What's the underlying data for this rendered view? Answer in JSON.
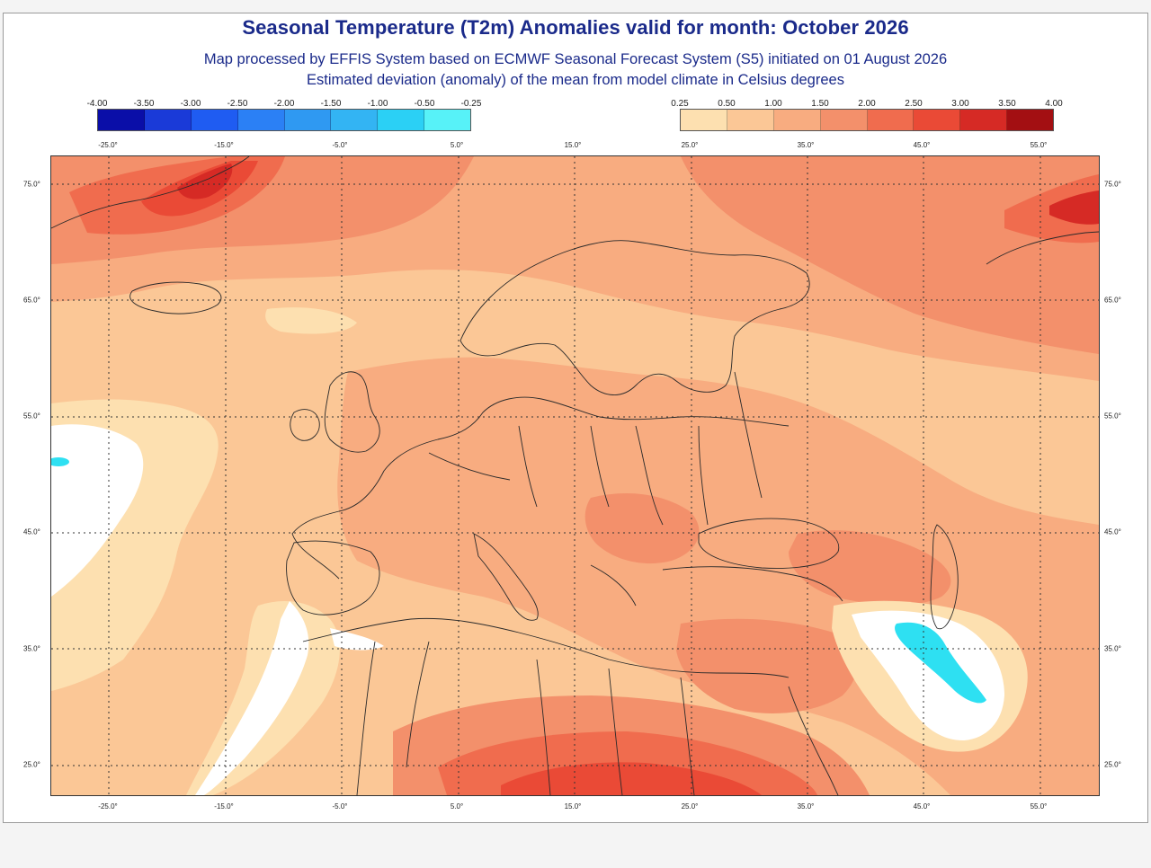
{
  "title": "Seasonal Temperature (T2m) Anomalies valid for month: October 2026",
  "subtitle_1": "Map processed by EFFIS System based on ECMWF Seasonal Forecast System (S5) initiated on 01 August 2026",
  "subtitle_2": "Estimated deviation (anomaly) of the mean from model climate in Celsius degrees",
  "legend_negative": {
    "labels": [
      "-4.00",
      "-3.50",
      "-3.00",
      "-2.50",
      "-2.00",
      "-1.50",
      "-1.00",
      "-0.50",
      "-0.25"
    ],
    "colors": [
      "#0a0ea8",
      "#1a3ad8",
      "#1f5cf2",
      "#2b80f5",
      "#2f99f2",
      "#33b4f3",
      "#2bd0f5",
      "#57f2f8"
    ]
  },
  "legend_positive": {
    "labels": [
      "0.25",
      "0.50",
      "1.00",
      "1.50",
      "2.00",
      "2.50",
      "3.00",
      "3.50",
      "4.00"
    ],
    "colors": [
      "#fde0b0",
      "#fbc796",
      "#f8ac80",
      "#f3906b",
      "#f06c4e",
      "#ea4a36",
      "#d62a25",
      "#a30f12"
    ]
  },
  "map_colors": {
    "white": "#ffffff",
    "cyan": "#2ee0f2",
    "a025": "#fde0b0",
    "a050": "#fbc796",
    "a100": "#f8ac80",
    "a150": "#f3906b",
    "a200": "#f06c4e",
    "a250": "#ea4a36",
    "a300": "#d62a25",
    "a350": "#a30f12"
  },
  "lon_labels": [
    "-25.0°",
    "-15.0°",
    "-5.0°",
    "5.0°",
    "15.0°",
    "25.0°",
    "35.0°",
    "45.0°",
    "55.0°"
  ],
  "lat_labels": [
    "75.0°",
    "65.0°",
    "55.0°",
    "45.0°",
    "35.0°",
    "25.0°"
  ]
}
